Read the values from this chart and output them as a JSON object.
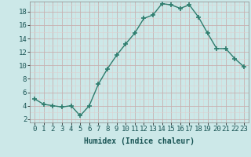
{
  "x": [
    0,
    1,
    2,
    3,
    4,
    5,
    6,
    7,
    8,
    9,
    10,
    11,
    12,
    13,
    14,
    15,
    16,
    17,
    18,
    19,
    20,
    21,
    22,
    23
  ],
  "y": [
    5.0,
    4.2,
    4.0,
    3.8,
    4.0,
    2.5,
    4.0,
    7.2,
    9.5,
    11.5,
    13.2,
    14.8,
    17.0,
    17.5,
    19.2,
    19.0,
    18.5,
    19.0,
    17.2,
    14.8,
    12.5,
    12.5,
    11.0,
    9.8
  ],
  "line_color": "#2e7d6e",
  "marker": "+",
  "marker_size": 4,
  "bg_color": "#cce8e8",
  "grid_color_major": "#c8b0b0",
  "grid_color_minor": "#ddd0d0",
  "xlabel": "Humidex (Indice chaleur)",
  "xlim": [
    -0.5,
    23.5
  ],
  "ylim": [
    1.5,
    19.5
  ],
  "yticks": [
    2,
    4,
    6,
    8,
    10,
    12,
    14,
    16,
    18
  ],
  "xticks": [
    0,
    1,
    2,
    3,
    4,
    5,
    6,
    7,
    8,
    9,
    10,
    11,
    12,
    13,
    14,
    15,
    16,
    17,
    18,
    19,
    20,
    21,
    22,
    23
  ],
  "xlabel_fontsize": 7,
  "tick_fontsize": 6.5,
  "line_width": 1.0
}
